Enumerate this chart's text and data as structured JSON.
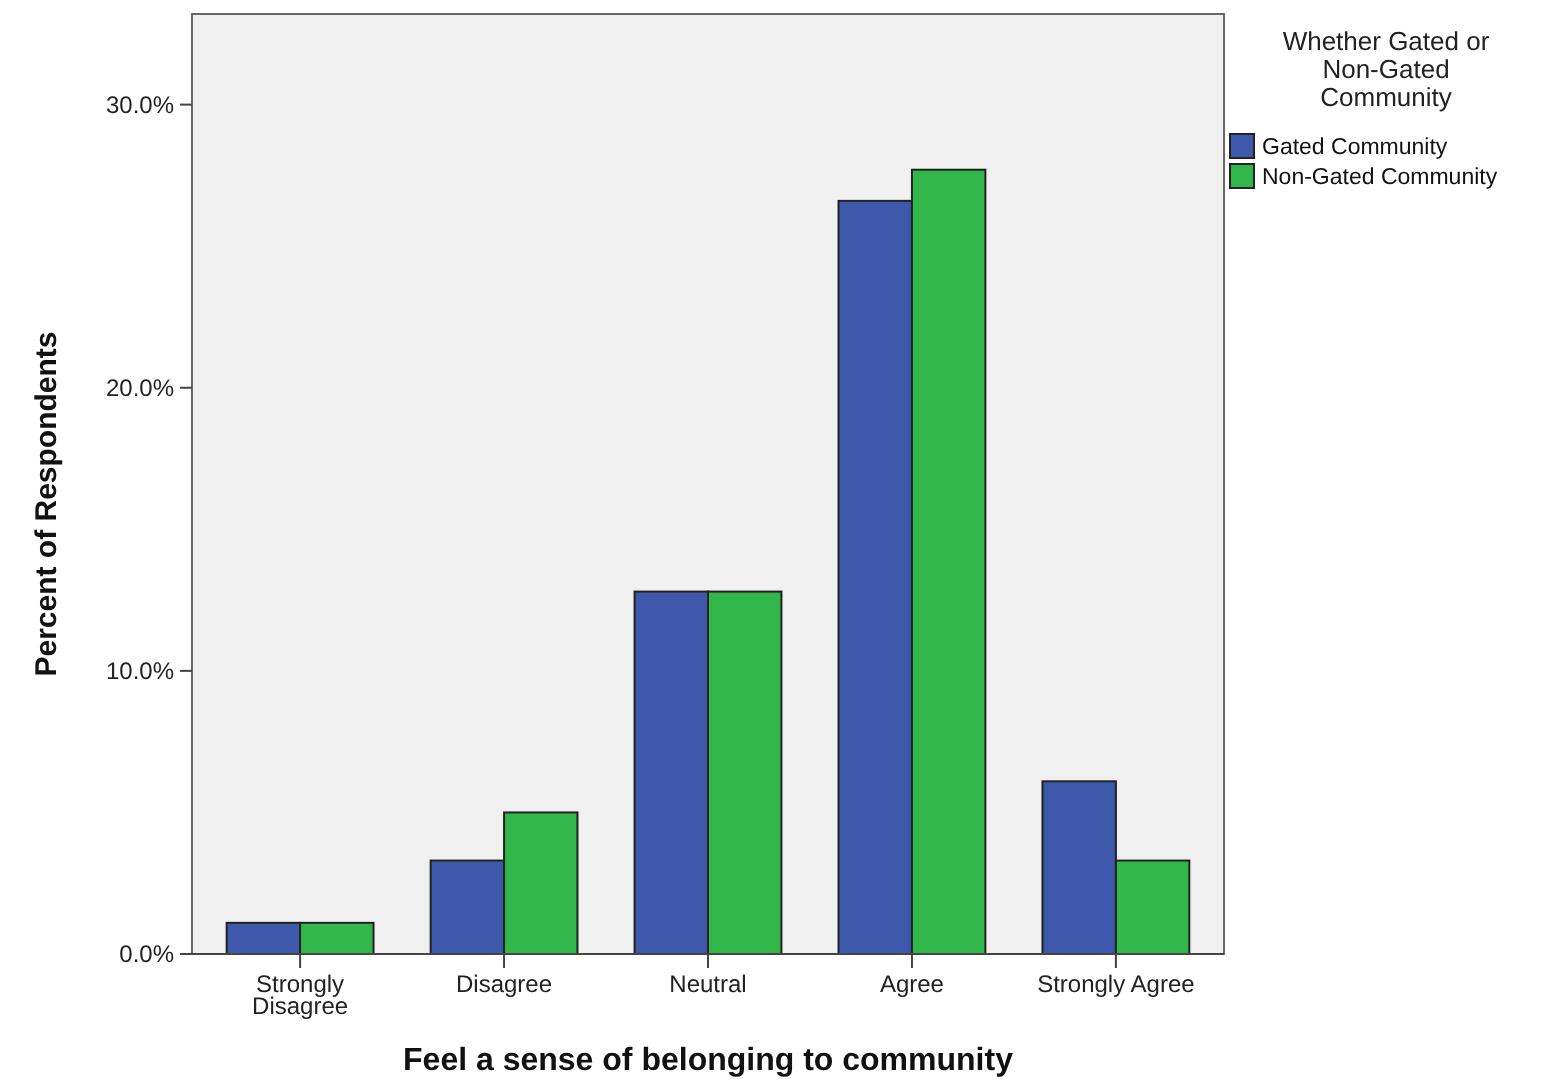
{
  "chart_data": {
    "type": "bar",
    "xlabel": "Feel a sense of belonging to community",
    "ylabel": "Percent of Respondents",
    "legend_title": "Whether Gated or Non-Gated Community",
    "categories": [
      "Strongly Disagree",
      "Disagree",
      "Neutral",
      "Agree",
      "Strongly Agree"
    ],
    "series": [
      {
        "name": "Gated Community",
        "color": "#3e58ac",
        "values": [
          1.1,
          3.3,
          12.8,
          26.6,
          6.1
        ]
      },
      {
        "name": "Non-Gated Community",
        "color": "#31b74a",
        "values": [
          1.1,
          5.0,
          12.8,
          27.7,
          3.3
        ]
      }
    ],
    "ylim": [
      0,
      33.2
    ],
    "yticks": [
      {
        "value": 0,
        "label": "0.0%"
      },
      {
        "value": 10,
        "label": "10.0%"
      },
      {
        "value": 20,
        "label": "20.0%"
      },
      {
        "value": 30,
        "label": "30.0%"
      }
    ],
    "grid": false,
    "legend": "top right"
  }
}
